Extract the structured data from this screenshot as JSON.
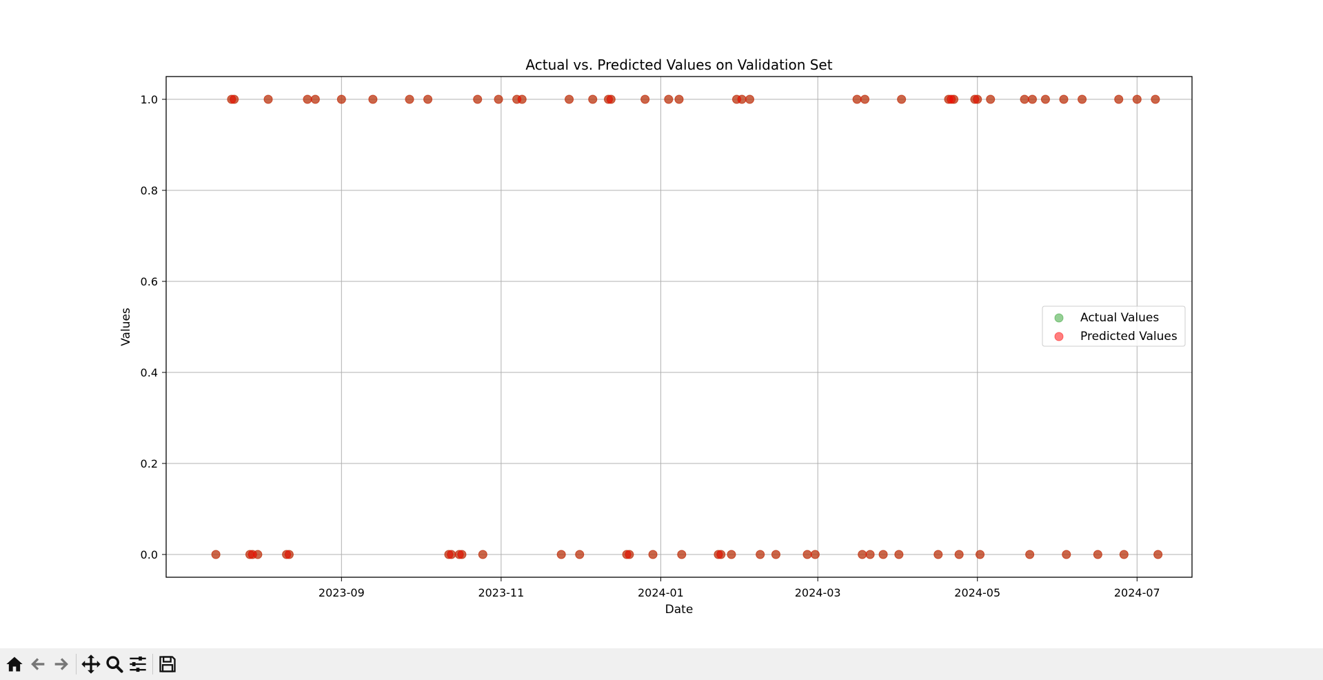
{
  "chart_data": {
    "type": "scatter",
    "title": "Actual vs. Predicted Values on Validation Set",
    "xlabel": "Date",
    "ylabel": "Values",
    "xlim": [
      "2023-06-26",
      "2024-07-22"
    ],
    "ylim": [
      -0.05,
      1.05
    ],
    "x_ticks": [
      "2023-09",
      "2023-11",
      "2024-01",
      "2024-03",
      "2024-05",
      "2024-07"
    ],
    "y_ticks": [
      "0.0",
      "0.2",
      "0.4",
      "0.6",
      "0.8",
      "1.0"
    ],
    "grid": true,
    "legend_position": "center-right",
    "series": [
      {
        "name": "Actual Values",
        "color": "#2ca02c",
        "points": [
          [
            "2023-07-15",
            0
          ],
          [
            "2023-07-21",
            1
          ],
          [
            "2023-07-22",
            1
          ],
          [
            "2023-07-28",
            0
          ],
          [
            "2023-07-29",
            0
          ],
          [
            "2023-07-31",
            0
          ],
          [
            "2023-08-04",
            1
          ],
          [
            "2023-08-11",
            0
          ],
          [
            "2023-08-12",
            0
          ],
          [
            "2023-08-19",
            1
          ],
          [
            "2023-08-22",
            1
          ],
          [
            "2023-09-01",
            1
          ],
          [
            "2023-09-13",
            1
          ],
          [
            "2023-09-27",
            1
          ],
          [
            "2023-10-04",
            1
          ],
          [
            "2023-10-12",
            0
          ],
          [
            "2023-10-13",
            0
          ],
          [
            "2023-10-16",
            0
          ],
          [
            "2023-10-17",
            0
          ],
          [
            "2023-10-23",
            1
          ],
          [
            "2023-10-25",
            0
          ],
          [
            "2023-10-31",
            1
          ],
          [
            "2023-11-07",
            1
          ],
          [
            "2023-11-09",
            1
          ],
          [
            "2023-11-24",
            0
          ],
          [
            "2023-11-27",
            1
          ],
          [
            "2023-12-01",
            0
          ],
          [
            "2023-12-06",
            1
          ],
          [
            "2023-12-12",
            1
          ],
          [
            "2023-12-13",
            1
          ],
          [
            "2023-12-19",
            0
          ],
          [
            "2023-12-20",
            0
          ],
          [
            "2023-12-26",
            1
          ],
          [
            "2023-12-29",
            0
          ],
          [
            "2024-01-04",
            1
          ],
          [
            "2024-01-08",
            1
          ],
          [
            "2024-01-09",
            0
          ],
          [
            "2024-01-23",
            0
          ],
          [
            "2024-01-24",
            0
          ],
          [
            "2024-01-28",
            0
          ],
          [
            "2024-01-30",
            1
          ],
          [
            "2024-02-01",
            1
          ],
          [
            "2024-02-04",
            1
          ],
          [
            "2024-02-08",
            0
          ],
          [
            "2024-02-14",
            0
          ],
          [
            "2024-02-26",
            0
          ],
          [
            "2024-02-29",
            0
          ],
          [
            "2024-03-16",
            1
          ],
          [
            "2024-03-18",
            0
          ],
          [
            "2024-03-19",
            1
          ],
          [
            "2024-03-21",
            0
          ],
          [
            "2024-03-26",
            0
          ],
          [
            "2024-04-01",
            0
          ],
          [
            "2024-04-02",
            1
          ],
          [
            "2024-04-16",
            0
          ],
          [
            "2024-04-20",
            1
          ],
          [
            "2024-04-21",
            1
          ],
          [
            "2024-04-22",
            1
          ],
          [
            "2024-04-24",
            0
          ],
          [
            "2024-04-30",
            1
          ],
          [
            "2024-05-01",
            1
          ],
          [
            "2024-05-02",
            0
          ],
          [
            "2024-05-06",
            1
          ],
          [
            "2024-05-19",
            1
          ],
          [
            "2024-05-21",
            0
          ],
          [
            "2024-05-22",
            1
          ],
          [
            "2024-05-27",
            1
          ],
          [
            "2024-06-03",
            1
          ],
          [
            "2024-06-04",
            0
          ],
          [
            "2024-06-10",
            1
          ],
          [
            "2024-06-16",
            0
          ],
          [
            "2024-06-24",
            1
          ],
          [
            "2024-06-26",
            0
          ],
          [
            "2024-07-01",
            1
          ],
          [
            "2024-07-08",
            1
          ],
          [
            "2024-07-09",
            0
          ]
        ]
      },
      {
        "name": "Predicted Values",
        "color": "#ff0000",
        "points": [
          [
            "2023-07-15",
            0
          ],
          [
            "2023-07-21",
            1
          ],
          [
            "2023-07-22",
            1
          ],
          [
            "2023-07-28",
            0
          ],
          [
            "2023-07-29",
            0
          ],
          [
            "2023-07-31",
            0
          ],
          [
            "2023-08-04",
            1
          ],
          [
            "2023-08-11",
            0
          ],
          [
            "2023-08-12",
            0
          ],
          [
            "2023-08-19",
            1
          ],
          [
            "2023-08-22",
            1
          ],
          [
            "2023-09-01",
            1
          ],
          [
            "2023-09-13",
            1
          ],
          [
            "2023-09-27",
            1
          ],
          [
            "2023-10-04",
            1
          ],
          [
            "2023-10-12",
            0
          ],
          [
            "2023-10-13",
            0
          ],
          [
            "2023-10-16",
            0
          ],
          [
            "2023-10-17",
            0
          ],
          [
            "2023-10-23",
            1
          ],
          [
            "2023-10-25",
            0
          ],
          [
            "2023-10-31",
            1
          ],
          [
            "2023-11-07",
            1
          ],
          [
            "2023-11-09",
            1
          ],
          [
            "2023-11-24",
            0
          ],
          [
            "2023-11-27",
            1
          ],
          [
            "2023-12-01",
            0
          ],
          [
            "2023-12-06",
            1
          ],
          [
            "2023-12-12",
            1
          ],
          [
            "2023-12-13",
            1
          ],
          [
            "2023-12-19",
            0
          ],
          [
            "2023-12-20",
            0
          ],
          [
            "2023-12-26",
            1
          ],
          [
            "2023-12-29",
            0
          ],
          [
            "2024-01-04",
            1
          ],
          [
            "2024-01-08",
            1
          ],
          [
            "2024-01-09",
            0
          ],
          [
            "2024-01-23",
            0
          ],
          [
            "2024-01-24",
            0
          ],
          [
            "2024-01-28",
            0
          ],
          [
            "2024-01-30",
            1
          ],
          [
            "2024-02-01",
            1
          ],
          [
            "2024-02-04",
            1
          ],
          [
            "2024-02-08",
            0
          ],
          [
            "2024-02-14",
            0
          ],
          [
            "2024-02-26",
            0
          ],
          [
            "2024-02-29",
            0
          ],
          [
            "2024-03-16",
            1
          ],
          [
            "2024-03-18",
            0
          ],
          [
            "2024-03-19",
            1
          ],
          [
            "2024-03-21",
            0
          ],
          [
            "2024-03-26",
            0
          ],
          [
            "2024-04-01",
            0
          ],
          [
            "2024-04-02",
            1
          ],
          [
            "2024-04-16",
            0
          ],
          [
            "2024-04-20",
            1
          ],
          [
            "2024-04-21",
            1
          ],
          [
            "2024-04-22",
            1
          ],
          [
            "2024-04-24",
            0
          ],
          [
            "2024-04-30",
            1
          ],
          [
            "2024-05-01",
            1
          ],
          [
            "2024-05-02",
            0
          ],
          [
            "2024-05-06",
            1
          ],
          [
            "2024-05-19",
            1
          ],
          [
            "2024-05-21",
            0
          ],
          [
            "2024-05-22",
            1
          ],
          [
            "2024-05-27",
            1
          ],
          [
            "2024-06-03",
            1
          ],
          [
            "2024-06-04",
            0
          ],
          [
            "2024-06-10",
            1
          ],
          [
            "2024-06-16",
            0
          ],
          [
            "2024-06-24",
            1
          ],
          [
            "2024-06-26",
            0
          ],
          [
            "2024-07-01",
            1
          ],
          [
            "2024-07-08",
            1
          ],
          [
            "2024-07-09",
            0
          ]
        ]
      }
    ]
  },
  "toolbar": {
    "buttons": [
      {
        "name": "home-button",
        "icon": "home-icon"
      },
      {
        "name": "back-button",
        "icon": "arrow-left-icon"
      },
      {
        "name": "forward-button",
        "icon": "arrow-right-icon"
      },
      {
        "name": "pan-button",
        "icon": "move-icon"
      },
      {
        "name": "zoom-button",
        "icon": "magnifier-icon"
      },
      {
        "name": "configure-subplots-button",
        "icon": "sliders-icon"
      },
      {
        "name": "save-button",
        "icon": "floppy-disk-icon"
      }
    ]
  }
}
